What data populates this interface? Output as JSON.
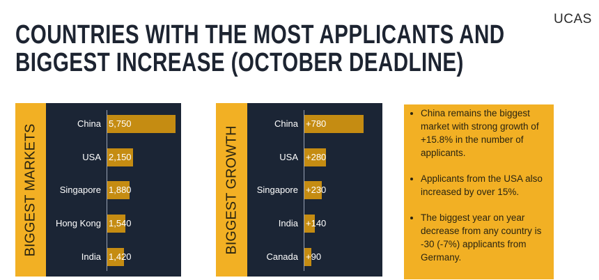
{
  "title_line1": "COUNTRIES WITH THE MOST APPLICANTS AND",
  "title_line2": "BIGGEST INCREASE (OCTOBER DEADLINE)",
  "logo": "UCAS",
  "colors": {
    "panel": "#1b2535",
    "accent": "#f2b024",
    "bar": "#c58c12"
  },
  "chart_data": [
    {
      "type": "bar",
      "orientation": "horizontal",
      "title": "BIGGEST MARKETS",
      "categories": [
        "China",
        "USA",
        "Singapore",
        "Hong Kong",
        "India"
      ],
      "values": [
        5750,
        2150,
        1880,
        1540,
        1420
      ],
      "labels": [
        "5,750",
        "2,150",
        "1,880",
        "1,540",
        "1,420"
      ]
    },
    {
      "type": "bar",
      "orientation": "horizontal",
      "title": "BIGGEST GROWTH",
      "categories": [
        "China",
        "USA",
        "Singapore",
        "India",
        "Canada"
      ],
      "values": [
        780,
        280,
        230,
        140,
        90
      ],
      "labels": [
        "+780",
        "+280",
        "+230",
        "+140",
        "+90"
      ]
    }
  ],
  "notes": [
    "China remains the biggest market with strong growth of +15.8% in the number of applicants.",
    "Applicants from the USA also increased by over 15%.",
    "The biggest year on year decrease from any country is -30 (-7%) applicants from Germany."
  ]
}
